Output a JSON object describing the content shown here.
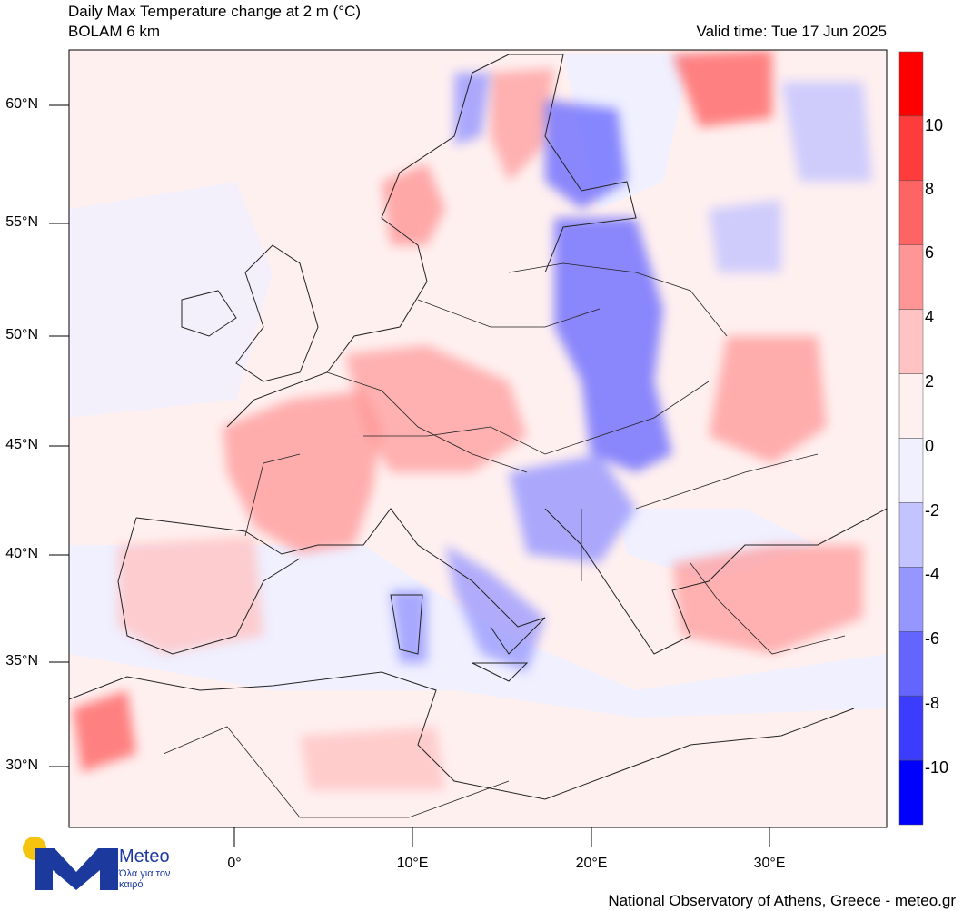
{
  "header": {
    "title_line1": "Daily Max Temperature change at 2 m (°C)",
    "title_line2": "BOLAM 6 km",
    "valid_time": "Valid time: Tue 17 Jun 2025"
  },
  "axes": {
    "lat_labels": [
      "60°N",
      "55°N",
      "50°N",
      "45°N",
      "40°N",
      "35°N",
      "30°N"
    ],
    "lon_labels": [
      "0°",
      "10°E",
      "20°E",
      "30°E"
    ]
  },
  "colorbar": {
    "labels": [
      "10",
      "8",
      "6",
      "4",
      "2",
      "0",
      "-2",
      "-4",
      "-6",
      "-8",
      "-10"
    ],
    "colors": [
      "#ff0000",
      "#ff3c3c",
      "#ff6464",
      "#ff9696",
      "#ffc3c3",
      "#fff0f0",
      "#f0f0ff",
      "#c3c3ff",
      "#9696ff",
      "#6464ff",
      "#3c3cff",
      "#0000ff"
    ]
  },
  "logo": {
    "brand": "Meteo",
    "tagline": "Όλα για τον καιρό"
  },
  "footer": {
    "credit": "National Observatory of Athens, Greece - meteo.gr"
  },
  "map_regions": [
    {
      "name": "france",
      "value": 3
    },
    {
      "name": "germany",
      "value": 3
    },
    {
      "name": "southern-norway",
      "value": 3
    },
    {
      "name": "finland",
      "value": -5
    },
    {
      "name": "baltic-poland",
      "value": -6
    },
    {
      "name": "balkans",
      "value": -4
    },
    {
      "name": "italy-south",
      "value": -4
    },
    {
      "name": "ukraine",
      "value": 3
    },
    {
      "name": "turkey",
      "value": 3
    },
    {
      "name": "north-africa",
      "value": 2
    },
    {
      "name": "russia-north",
      "value": 5
    }
  ]
}
